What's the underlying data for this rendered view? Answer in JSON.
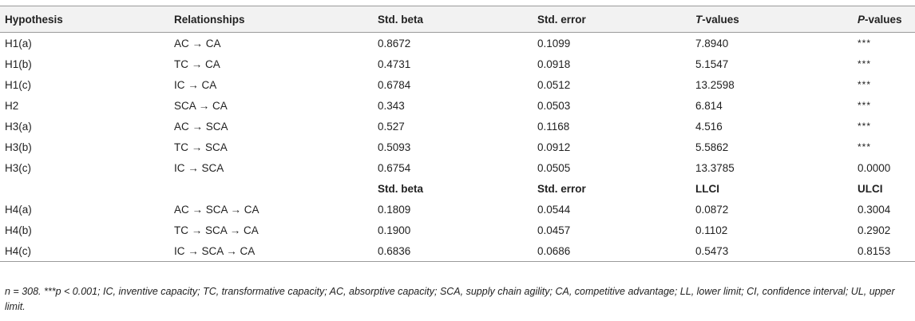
{
  "table": {
    "headers": {
      "hypothesis": "Hypothesis",
      "relationships": "Relationships",
      "std_beta": "Std. beta",
      "std_error": "Std. error",
      "t_prefix": "T",
      "t_suffix": "-values",
      "p_prefix": "P",
      "p_suffix": "-values"
    },
    "rows_direct": [
      {
        "hypothesis": "H1(a)",
        "relationship": "AC → CA",
        "std_beta": "0.8672",
        "std_error": "0.1099",
        "t_value": "7.8940",
        "p_value": "***"
      },
      {
        "hypothesis": "H1(b)",
        "relationship": "TC → CA",
        "std_beta": "0.4731",
        "std_error": "0.0918",
        "t_value": "5.1547",
        "p_value": "***"
      },
      {
        "hypothesis": "H1(c)",
        "relationship": "IC → CA",
        "std_beta": "0.6784",
        "std_error": "0.0512",
        "t_value": "13.2598",
        "p_value": "***"
      },
      {
        "hypothesis": "H2",
        "relationship": "SCA → CA",
        "std_beta": "0.343",
        "std_error": "0.0503",
        "t_value": "6.814",
        "p_value": "***"
      },
      {
        "hypothesis": "H3(a)",
        "relationship": "AC → SCA",
        "std_beta": "0.527",
        "std_error": "0.1168",
        "t_value": "4.516",
        "p_value": "***"
      },
      {
        "hypothesis": "H3(b)",
        "relationship": "TC → SCA",
        "std_beta": "0.5093",
        "std_error": "0.0912",
        "t_value": "5.5862",
        "p_value": "***"
      },
      {
        "hypothesis": "H3(c)",
        "relationship": "IC → SCA",
        "std_beta": "0.6754",
        "std_error": "0.0505",
        "t_value": "13.3785",
        "p_value": "0.0000"
      }
    ],
    "subheader": {
      "std_beta": "Std. beta",
      "std_error": "Std. error",
      "llci": "LLCI",
      "ulci": "ULCI"
    },
    "rows_mediation": [
      {
        "hypothesis": "H4(a)",
        "relationship": "AC → SCA → CA",
        "std_beta": "0.1809",
        "std_error": "0.0544",
        "llci": "0.0872",
        "ulci": "0.3004"
      },
      {
        "hypothesis": "H4(b)",
        "relationship": "TC → SCA → CA",
        "std_beta": "0.1900",
        "std_error": "0.0457",
        "llci": "0.1102",
        "ulci": "0.2902"
      },
      {
        "hypothesis": "H4(c)",
        "relationship": "IC → SCA → CA",
        "std_beta": "0.6836",
        "std_error": "0.0686",
        "llci": "0.5473",
        "ulci": "0.8153"
      }
    ]
  },
  "footnote": "n = 308. ***p < 0.001; IC, inventive capacity; TC, transformative capacity; AC, absorptive capacity; SCA, supply chain agility; CA, competitive advantage; LL, lower limit; CI, confidence interval; UL, upper limit."
}
